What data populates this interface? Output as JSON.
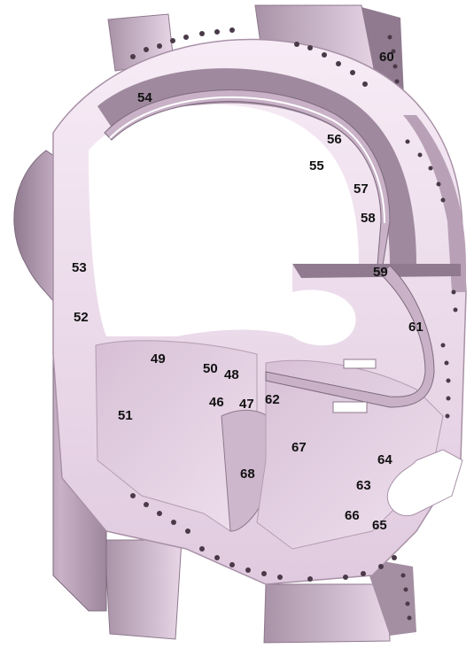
{
  "labels": {
    "n46": "46",
    "n47": "47",
    "n48": "48",
    "n49": "49",
    "n50": "50",
    "n51": "51",
    "n52": "52",
    "n53": "53",
    "n54": "54",
    "n55": "55",
    "n56": "56",
    "n57": "57",
    "n58": "58",
    "n59": "59",
    "n60": "60",
    "n61": "61",
    "n62": "62",
    "n63": "63",
    "n64": "64",
    "n65": "65",
    "n66": "66",
    "n67": "67",
    "n68": "68"
  },
  "colors": {
    "surface_light": "#f4e6f3",
    "surface_mid": "#dcc6da",
    "surface_dark": "#a08aa0",
    "surface_shadow": "#7d6a7d",
    "bolt_hole": "#4a3a48",
    "label_text": "#111111"
  }
}
